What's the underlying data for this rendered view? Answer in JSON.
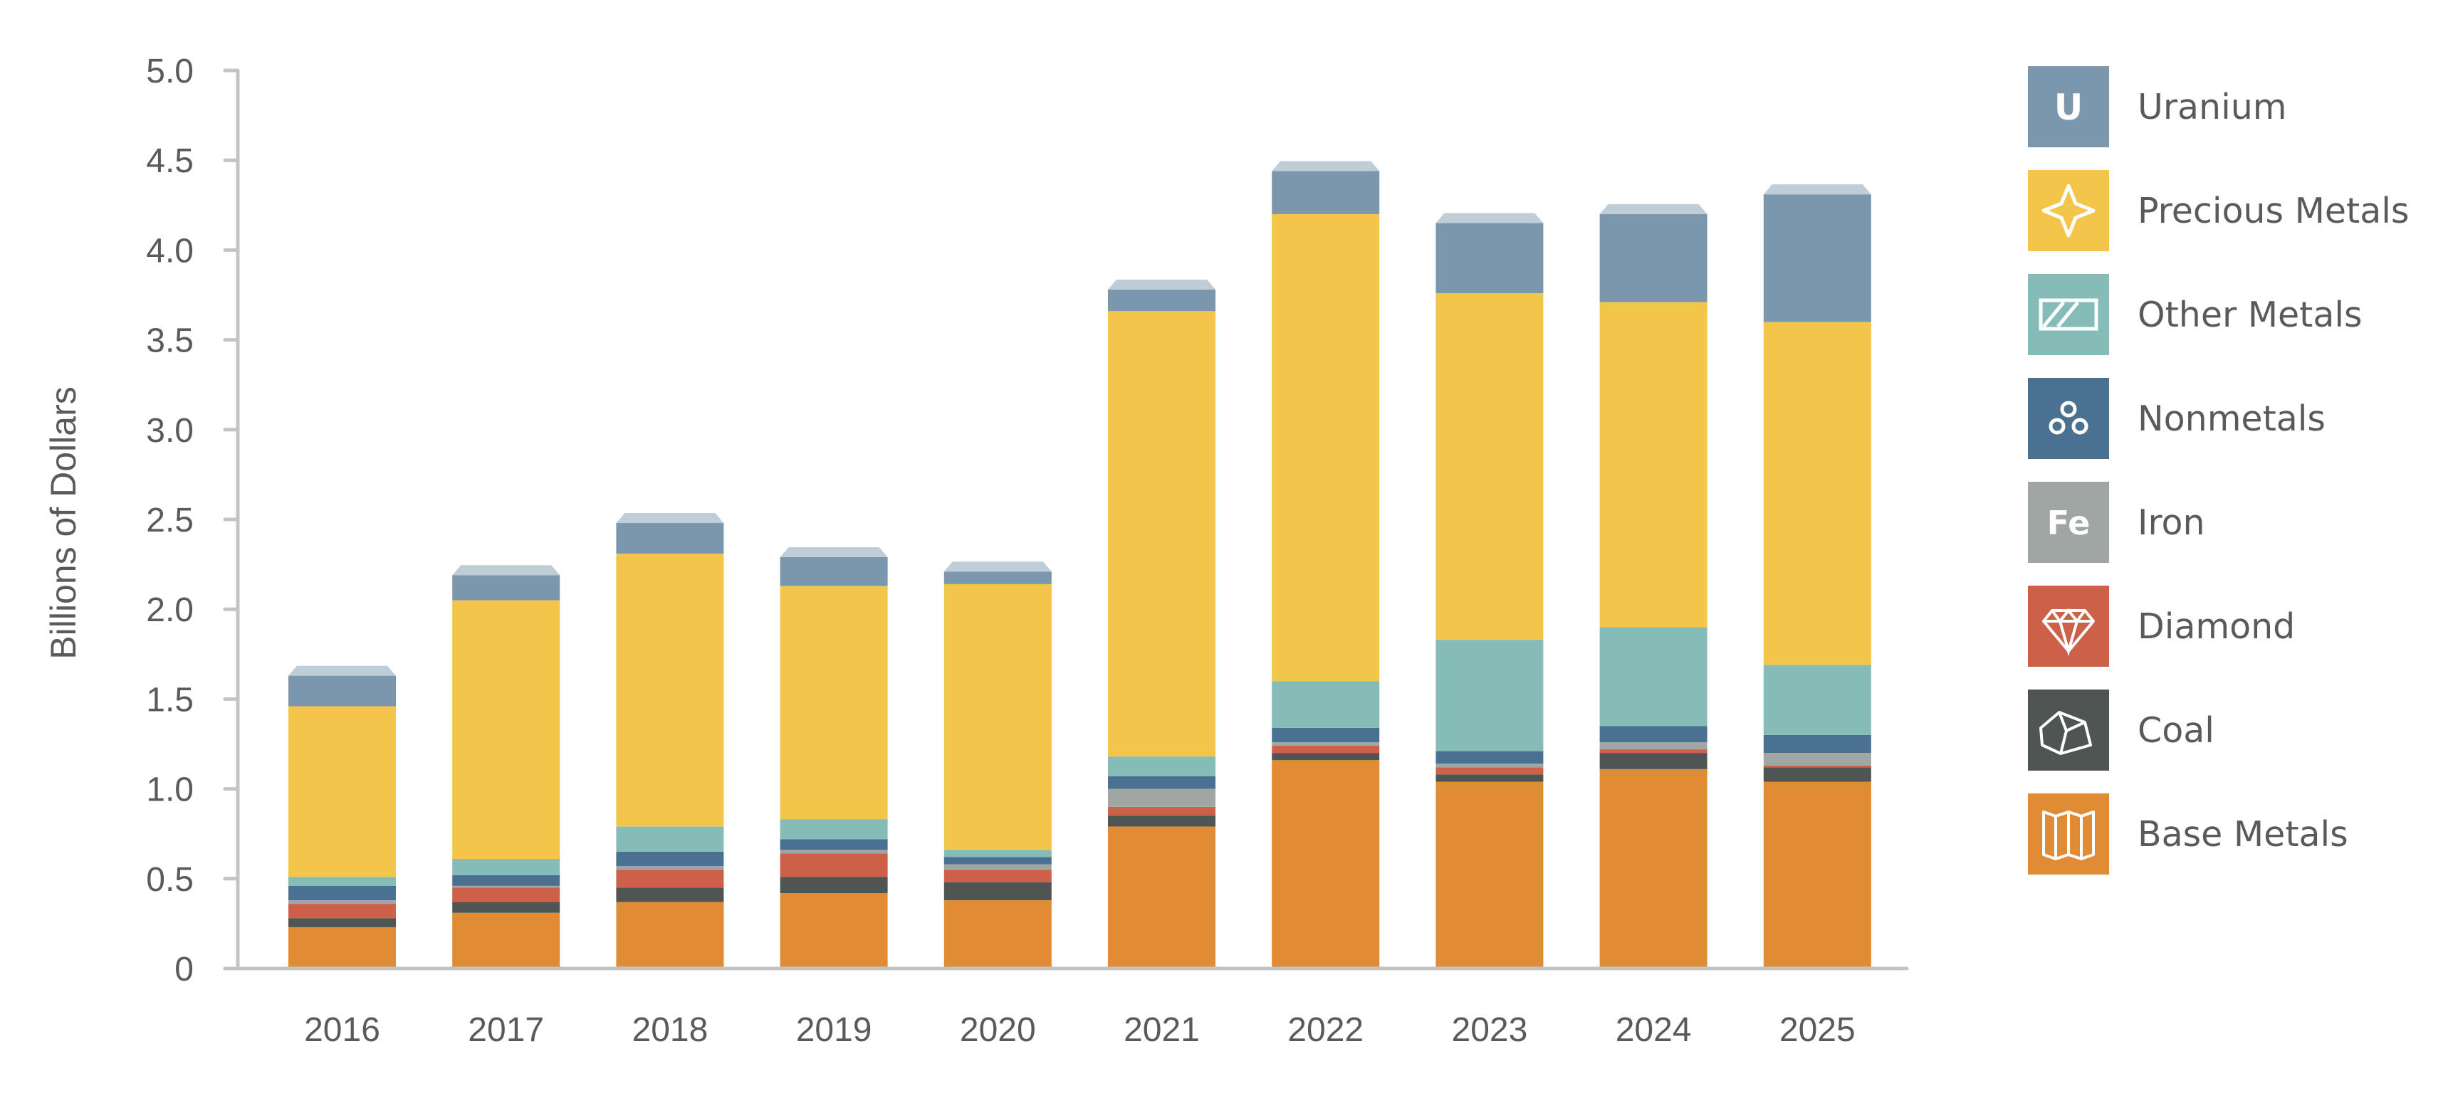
{
  "chart_data": {
    "type": "bar",
    "stacked": true,
    "title": "",
    "xlabel": "",
    "ylabel": "Billions of Dollars",
    "ylim": [
      0,
      5.0
    ],
    "yticks": [
      "0",
      "0.5",
      "1.0",
      "1.5",
      "2.0",
      "2.5",
      "3.0",
      "3.5",
      "4.0",
      "4.5",
      "5.0"
    ],
    "ytick_values": [
      0,
      0.5,
      1.0,
      1.5,
      2.0,
      2.5,
      3.0,
      3.5,
      4.0,
      4.5,
      5.0
    ],
    "grid": false,
    "legend_position": "right",
    "categories": [
      "2016",
      "2017",
      "2018",
      "2019",
      "2020",
      "2021",
      "2022",
      "2023",
      "2024",
      "2025"
    ],
    "series": [
      {
        "name": "Base Metals",
        "color": "#e08c34",
        "icon": "folded-map-icon",
        "values": [
          0.23,
          0.31,
          0.37,
          0.42,
          0.38,
          0.79,
          1.16,
          1.04,
          1.11,
          1.04
        ]
      },
      {
        "name": "Coal",
        "color": "#4f5553",
        "icon": "coal-lump-icon",
        "values": [
          0.05,
          0.06,
          0.08,
          0.09,
          0.1,
          0.06,
          0.04,
          0.04,
          0.09,
          0.08
        ]
      },
      {
        "name": "Diamond",
        "color": "#cc6048",
        "icon": "diamond-gem-icon",
        "values": [
          0.08,
          0.08,
          0.1,
          0.13,
          0.07,
          0.05,
          0.04,
          0.04,
          0.02,
          0.01
        ]
      },
      {
        "name": "Iron",
        "color": "#a0a6a3",
        "icon": "fe-symbol-icon",
        "icon_text": "Fe",
        "values": [
          0.02,
          0.01,
          0.02,
          0.02,
          0.03,
          0.1,
          0.02,
          0.02,
          0.04,
          0.07
        ]
      },
      {
        "name": "Nonmetals",
        "color": "#4a7190",
        "icon": "three-circles-icon",
        "values": [
          0.08,
          0.06,
          0.08,
          0.06,
          0.04,
          0.07,
          0.08,
          0.07,
          0.09,
          0.1
        ]
      },
      {
        "name": "Other Metals",
        "color": "#85bcb8",
        "icon": "hatched-bar-icon",
        "values": [
          0.05,
          0.09,
          0.14,
          0.11,
          0.04,
          0.11,
          0.26,
          0.62,
          0.55,
          0.39
        ]
      },
      {
        "name": "Precious Metals",
        "color": "#f3c64b",
        "icon": "sparkle-star-icon",
        "values": [
          0.95,
          1.44,
          1.52,
          1.3,
          1.48,
          2.48,
          2.6,
          1.93,
          1.81,
          1.91
        ]
      },
      {
        "name": "Uranium",
        "color": "#7b97ad",
        "icon": "u-symbol-icon",
        "icon_text": "U",
        "values": [
          0.17,
          0.14,
          0.17,
          0.16,
          0.07,
          0.12,
          0.24,
          0.39,
          0.49,
          0.71
        ]
      }
    ],
    "cap_color": "#bfcdd6",
    "axis_color": "#c4c4c4",
    "text_color": "#5a5a5a"
  },
  "legend": {
    "items": [
      {
        "label": "Uranium",
        "series_index": 7
      },
      {
        "label": "Precious Metals",
        "series_index": 6
      },
      {
        "label": "Other Metals",
        "series_index": 5
      },
      {
        "label": "Nonmetals",
        "series_index": 4
      },
      {
        "label": "Iron",
        "series_index": 3
      },
      {
        "label": "Diamond",
        "series_index": 2
      },
      {
        "label": "Coal",
        "series_index": 1
      },
      {
        "label": "Base Metals",
        "series_index": 0
      }
    ]
  }
}
